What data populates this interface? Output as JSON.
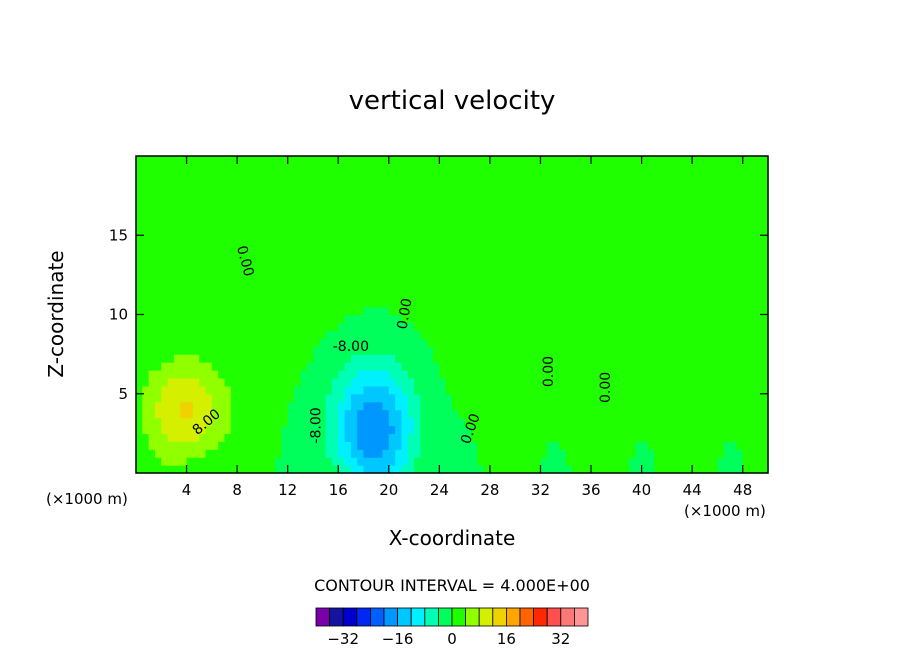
{
  "chart_data": {
    "type": "heatmap",
    "subtype": "filled-contour",
    "title": "vertical velocity",
    "xlabel": "X-coordinate",
    "ylabel": "Z-coordinate",
    "x_unit_left": "(×1000 m)",
    "x_unit_right": "(×1000 m)",
    "xlim": [
      0,
      50
    ],
    "ylim": [
      0,
      20
    ],
    "x_ticks": [
      4,
      8,
      12,
      16,
      20,
      24,
      28,
      32,
      36,
      40,
      44,
      48
    ],
    "y_ticks": [
      5,
      10,
      15
    ],
    "contour_interval_label": "CONTOUR INTERVAL = 4.000E+00",
    "contour_interval": 4,
    "contour_labels": [
      {
        "text": "0.00",
        "x": 8.3,
        "y": 13.3,
        "angle": 75
      },
      {
        "text": "0.00",
        "x": 21.6,
        "y": 10.0,
        "angle": -80
      },
      {
        "text": "0.00",
        "x": 33.0,
        "y": 6.4,
        "angle": -90
      },
      {
        "text": "0.00",
        "x": 37.5,
        "y": 5.4,
        "angle": -90
      },
      {
        "text": "0.00",
        "x": 26.8,
        "y": 2.7,
        "angle": -70
      },
      {
        "text": "8.00",
        "x": 5.8,
        "y": 3.0,
        "angle": -40
      },
      {
        "text": "-8.00",
        "x": 17.0,
        "y": 7.7,
        "angle": 0
      },
      {
        "text": "-8.00",
        "x": 14.6,
        "y": 3.0,
        "angle": -90
      }
    ],
    "field_features": [
      {
        "kind": "updraft",
        "x": 4.0,
        "y": 4.0,
        "peak": 12
      },
      {
        "kind": "downdraft",
        "x": 18.8,
        "y": 2.8,
        "peak": -20
      }
    ],
    "colorbar": {
      "levels": [
        -36,
        -32,
        -28,
        -24,
        -20,
        -16,
        -12,
        -8,
        -4,
        0,
        4,
        8,
        12,
        16,
        20,
        24,
        28,
        32,
        36
      ],
      "tick_labels": [
        "-32",
        "-16",
        "0",
        "16",
        "32"
      ],
      "tick_values": [
        -32,
        -16,
        0,
        16,
        32
      ],
      "colors": [
        "#7a00aa",
        "#1414a0",
        "#0000cc",
        "#0028f0",
        "#0060ff",
        "#0098ff",
        "#00c8ff",
        "#00f0ff",
        "#00ffb4",
        "#00ff5a",
        "#20ff00",
        "#90ff00",
        "#d4f000",
        "#f0d200",
        "#ffa500",
        "#ff6400",
        "#ff2800",
        "#ff5050",
        "#ff7878",
        "#ff9696"
      ]
    }
  }
}
